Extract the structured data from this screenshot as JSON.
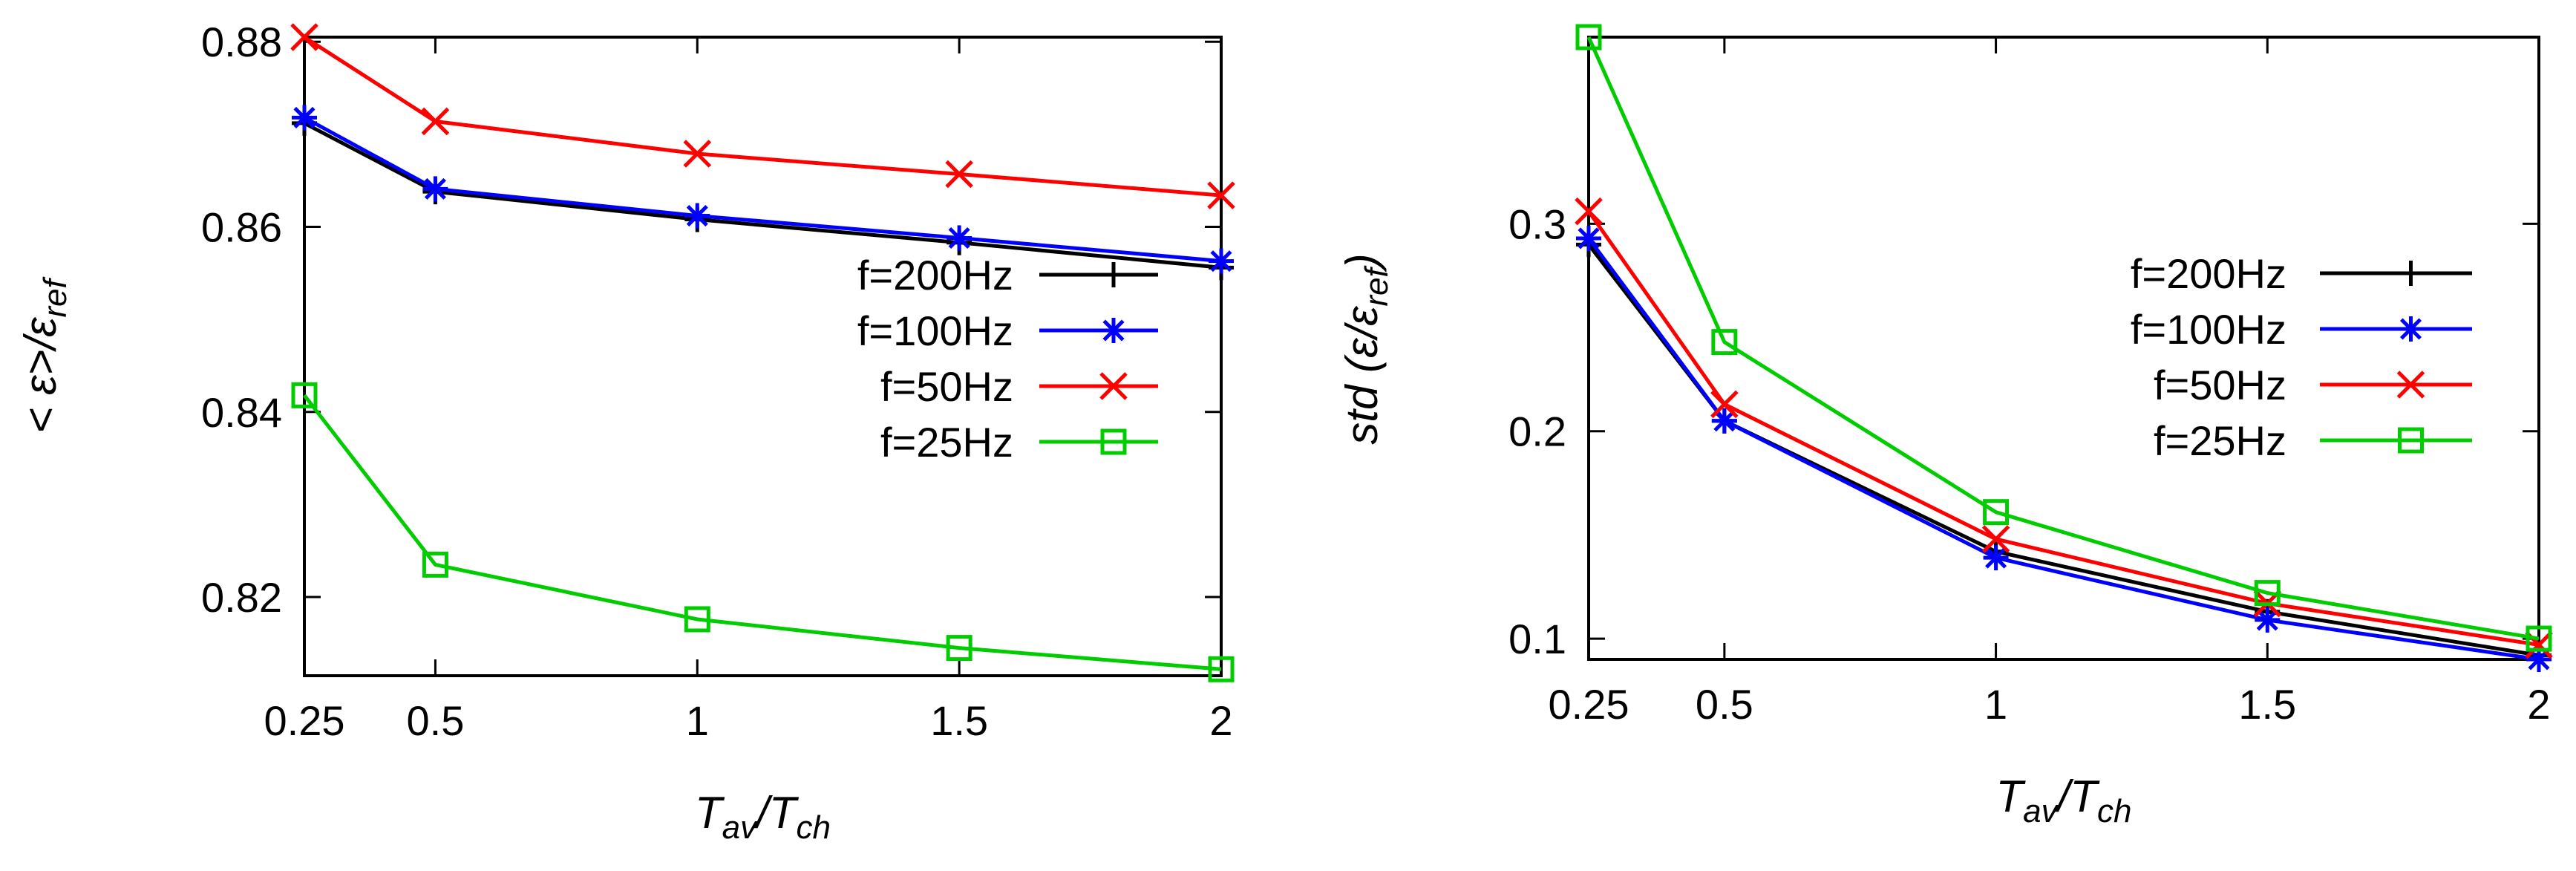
{
  "chart_data": [
    {
      "type": "line",
      "title": "",
      "xlabel": "T_av/T_ch",
      "xlabel_parts": {
        "main": "T",
        "sub1": "av",
        "sep": "/T",
        "sub2": "ch"
      },
      "ylabel": "< ε>/ε_ref",
      "ylabel_parts": {
        "main": "< ε>/ε",
        "sub": "ref"
      },
      "x": [
        0.25,
        0.5,
        1,
        1.5,
        2
      ],
      "xlim": [
        0.25,
        2
      ],
      "ylim": [
        0.8115,
        0.8805
      ],
      "xticks": [
        0.25,
        0.5,
        1,
        1.5,
        2
      ],
      "xtick_labels": [
        "0.25",
        "0.5",
        "1",
        "1.5",
        "2"
      ],
      "yticks": [
        0.82,
        0.84,
        0.86,
        0.88
      ],
      "ytick_labels": [
        "0.82",
        "0.84",
        "0.86",
        "0.88"
      ],
      "legend_position": "center-right",
      "series": [
        {
          "name": "f=200Hz",
          "color": "#000000",
          "marker": "plus",
          "values": [
            0.8712,
            0.8638,
            0.8608,
            0.8583,
            0.8556
          ]
        },
        {
          "name": "f=100Hz",
          "color": "#0000ff",
          "marker": "star",
          "values": [
            0.8718,
            0.8641,
            0.8612,
            0.8588,
            0.8563
          ]
        },
        {
          "name": "f=50Hz",
          "color": "#ff0000",
          "marker": "x",
          "values": [
            0.8805,
            0.8714,
            0.8679,
            0.8657,
            0.8634
          ]
        },
        {
          "name": "f=25Hz",
          "color": "#00cc00",
          "marker": "square",
          "values": [
            0.8418,
            0.8235,
            0.8176,
            0.8145,
            0.8122
          ]
        }
      ]
    },
    {
      "type": "line",
      "title": "",
      "xlabel": "T_av/T_ch",
      "xlabel_parts": {
        "main": "T",
        "sub1": "av",
        "sep": "/T",
        "sub2": "ch"
      },
      "ylabel": "std (ε/ε_ref)",
      "ylabel_parts": {
        "main": "std (ε/ε",
        "sub": "ref",
        "close": ")"
      },
      "x": [
        0.25,
        0.5,
        1,
        1.5,
        2
      ],
      "xlim": [
        0.25,
        2
      ],
      "ylim": [
        0.09,
        0.39
      ],
      "xticks": [
        0.25,
        0.5,
        1,
        1.5,
        2
      ],
      "xtick_labels": [
        "0.25",
        "0.5",
        "1",
        "1.5",
        "2"
      ],
      "yticks": [
        0.1,
        0.2,
        0.3
      ],
      "ytick_labels": [
        "0.1",
        "0.2",
        "0.3"
      ],
      "legend_position": "center-right",
      "series": [
        {
          "name": "f=200Hz",
          "color": "#000000",
          "marker": "plus",
          "values": [
            0.29,
            0.205,
            0.142,
            0.113,
            0.092
          ]
        },
        {
          "name": "f=100Hz",
          "color": "#0000ff",
          "marker": "star",
          "values": [
            0.293,
            0.205,
            0.139,
            0.109,
            0.09
          ]
        },
        {
          "name": "f=50Hz",
          "color": "#ff0000",
          "marker": "x",
          "values": [
            0.306,
            0.213,
            0.148,
            0.117,
            0.097
          ]
        },
        {
          "name": "f=25Hz",
          "color": "#00cc00",
          "marker": "square",
          "values": [
            0.39,
            0.243,
            0.161,
            0.122,
            0.1
          ]
        }
      ]
    }
  ]
}
